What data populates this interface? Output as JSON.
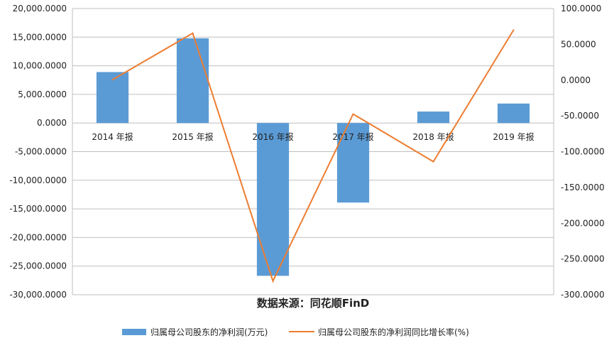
{
  "chart_data": {
    "type": "bar+line",
    "categories": [
      "2014 年报",
      "2015 年报",
      "2016 年报",
      "2017 年报",
      "2018 年报",
      "2019 年报"
    ],
    "series": [
      {
        "name": "归属母公司股东的净利润(万元)",
        "type": "bar",
        "axis": "left",
        "color": "#5b9bd5",
        "values": [
          8900,
          14800,
          -26700,
          -13900,
          2000,
          3400
        ]
      },
      {
        "name": "归属母公司股东的净利润同比增长率(%)",
        "type": "line",
        "axis": "right",
        "color": "#ed7d31",
        "values": [
          0.5,
          65.5,
          -281,
          -47.5,
          -114,
          70
        ]
      }
    ],
    "y_left": {
      "lim": [
        -30000,
        20000
      ],
      "ticks": [
        20000,
        15000,
        10000,
        5000,
        0,
        -5000,
        -10000,
        -15000,
        -20000,
        -25000,
        -30000
      ],
      "tick_labels": [
        "20,000.0000",
        "15,000.0000",
        "10,000.0000",
        "5,000.0000",
        "0.0000",
        "-5,000.0000",
        "-10,000.0000",
        "-15,000.0000",
        "-20,000.0000",
        "-25,000.0000",
        "-30,000.0000"
      ]
    },
    "y_right": {
      "lim": [
        -300,
        100
      ],
      "ticks": [
        100,
        50,
        0,
        -50,
        -100,
        -150,
        -200,
        -250,
        -300
      ],
      "tick_labels": [
        "100.0000",
        "50.0000",
        "0.0000",
        "-50.0000",
        "-100.0000",
        "-150.0000",
        "-200.0000",
        "-250.0000",
        "-300.0000"
      ]
    },
    "grid": true,
    "legend_position": "bottom"
  },
  "source_text": "数据来源：同花顺FinD"
}
